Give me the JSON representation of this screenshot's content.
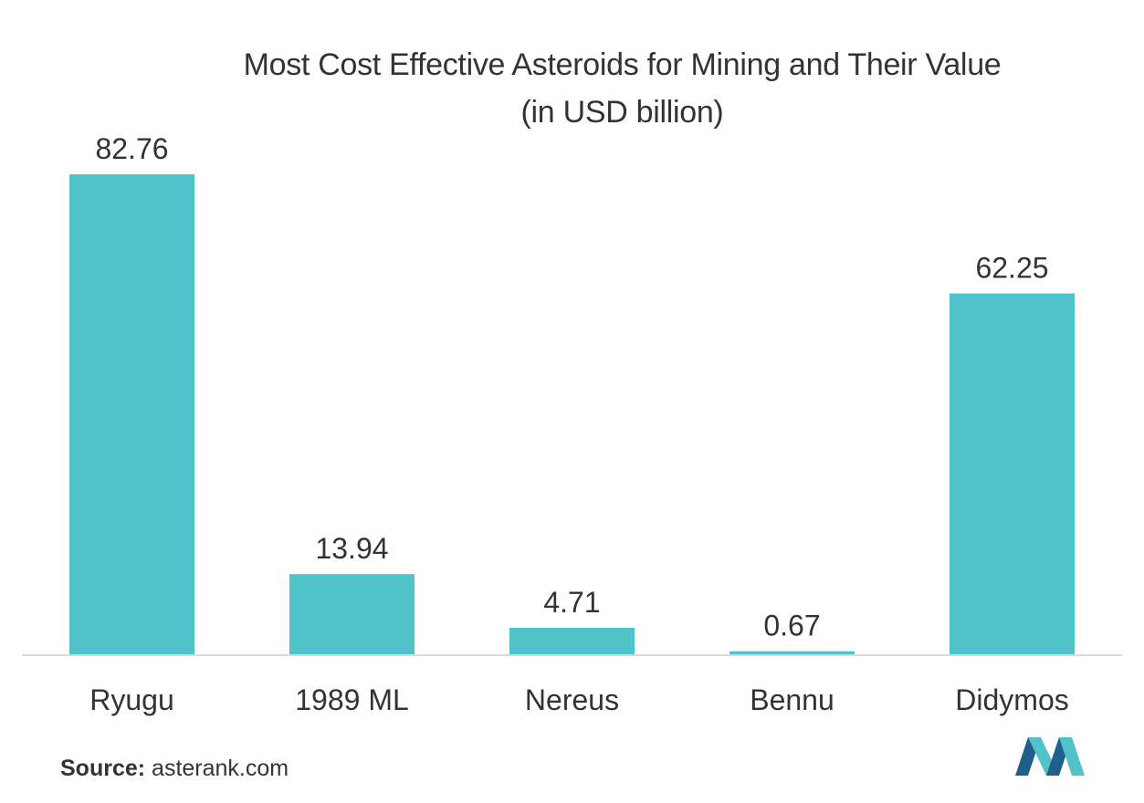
{
  "chart_data": {
    "type": "bar",
    "title": "Most Cost Effective Asteroids for Mining and Their Value",
    "subtitle": "(in USD billion)",
    "categories": [
      "Ryugu",
      "1989 ML",
      "Nereus",
      "Bennu",
      "Didymos"
    ],
    "values": [
      82.76,
      13.94,
      4.71,
      0.67,
      62.25
    ],
    "value_labels": [
      "82.76",
      "13.94",
      "4.71",
      "0.67",
      "62.25"
    ],
    "xlabel": "",
    "ylabel": "",
    "ylim": [
      0,
      82.76
    ],
    "grid": false,
    "legend": "none",
    "bar_color": "#4fc3c9"
  },
  "source": {
    "label": "Source:",
    "text": "asterank.com"
  },
  "colors": {
    "text": "#333333",
    "axis": "#d9d9d9",
    "logo_dark": "#1f5f8b",
    "logo_light": "#4fc3c9"
  }
}
